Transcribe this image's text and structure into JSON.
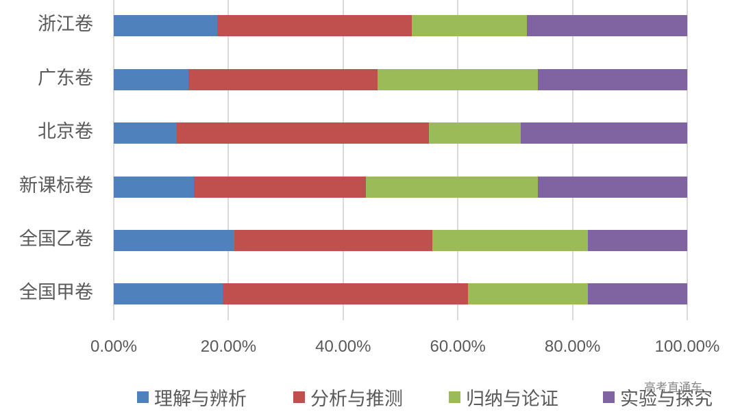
{
  "chart_data": {
    "type": "bar",
    "orientation": "horizontal",
    "stacked": "percent",
    "title": "",
    "xlabel": "",
    "ylabel": "",
    "xlim": [
      0,
      100
    ],
    "grid": true,
    "legend_position": "bottom",
    "categories": [
      "浙江卷",
      "广东卷",
      "北京卷",
      "新课标卷",
      "全国乙卷",
      "全国甲卷"
    ],
    "series": [
      {
        "name": "理解与辨析",
        "color": "#4F81BD",
        "values": [
          18,
          13,
          11,
          14,
          21,
          19
        ]
      },
      {
        "name": "分析与推测",
        "color": "#C0504D",
        "values": [
          34,
          33,
          44,
          30,
          34.6,
          42.8
        ]
      },
      {
        "name": "归纳与论证",
        "color": "#9BBB59",
        "values": [
          20,
          28,
          16,
          30,
          27.1,
          20.9
        ]
      },
      {
        "name": "实验与探究",
        "color": "#8064A2",
        "values": [
          28,
          26,
          29,
          26,
          17.3,
          17.3
        ]
      }
    ],
    "x_ticks": [
      "0.00%",
      "20.00%",
      "40.00%",
      "60.00%",
      "80.00%",
      "100.00%"
    ]
  },
  "watermark": "高考直通车"
}
